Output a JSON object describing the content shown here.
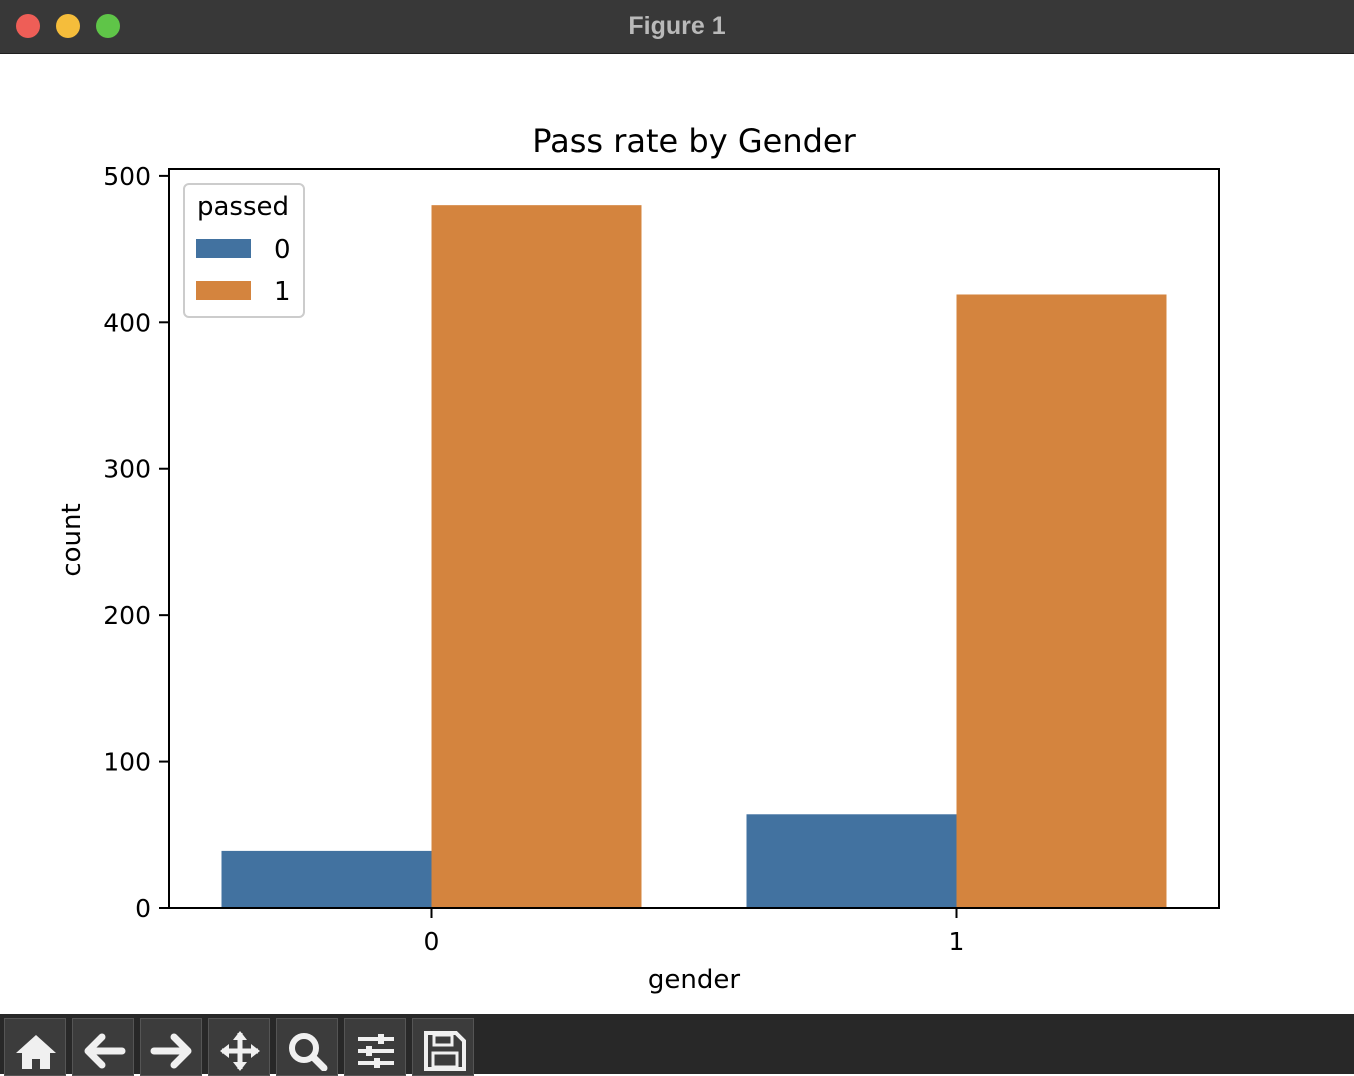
{
  "window": {
    "title": "Figure 1"
  },
  "toolbar": {
    "buttons": [
      {
        "icon": "home-icon"
      },
      {
        "icon": "back-arrow-icon"
      },
      {
        "icon": "forward-arrow-icon"
      },
      {
        "icon": "pan-move-icon"
      },
      {
        "icon": "zoom-magnifier-icon"
      },
      {
        "icon": "configure-subplots-icon"
      },
      {
        "icon": "save-floppy-icon"
      }
    ]
  },
  "chart_data": {
    "type": "bar",
    "title": "Pass rate by Gender",
    "xlabel": "gender",
    "ylabel": "count",
    "categories": [
      "0",
      "1"
    ],
    "series": [
      {
        "name": "0",
        "values": [
          39,
          64
        ],
        "color": "#4272a0"
      },
      {
        "name": "1",
        "values": [
          480,
          419
        ],
        "color": "#d4843e"
      }
    ],
    "yticks": [
      0,
      100,
      200,
      300,
      400,
      500
    ],
    "ylim": [
      0,
      500
    ],
    "legend": {
      "title": "passed",
      "position": "top-left"
    },
    "grid": false
  }
}
